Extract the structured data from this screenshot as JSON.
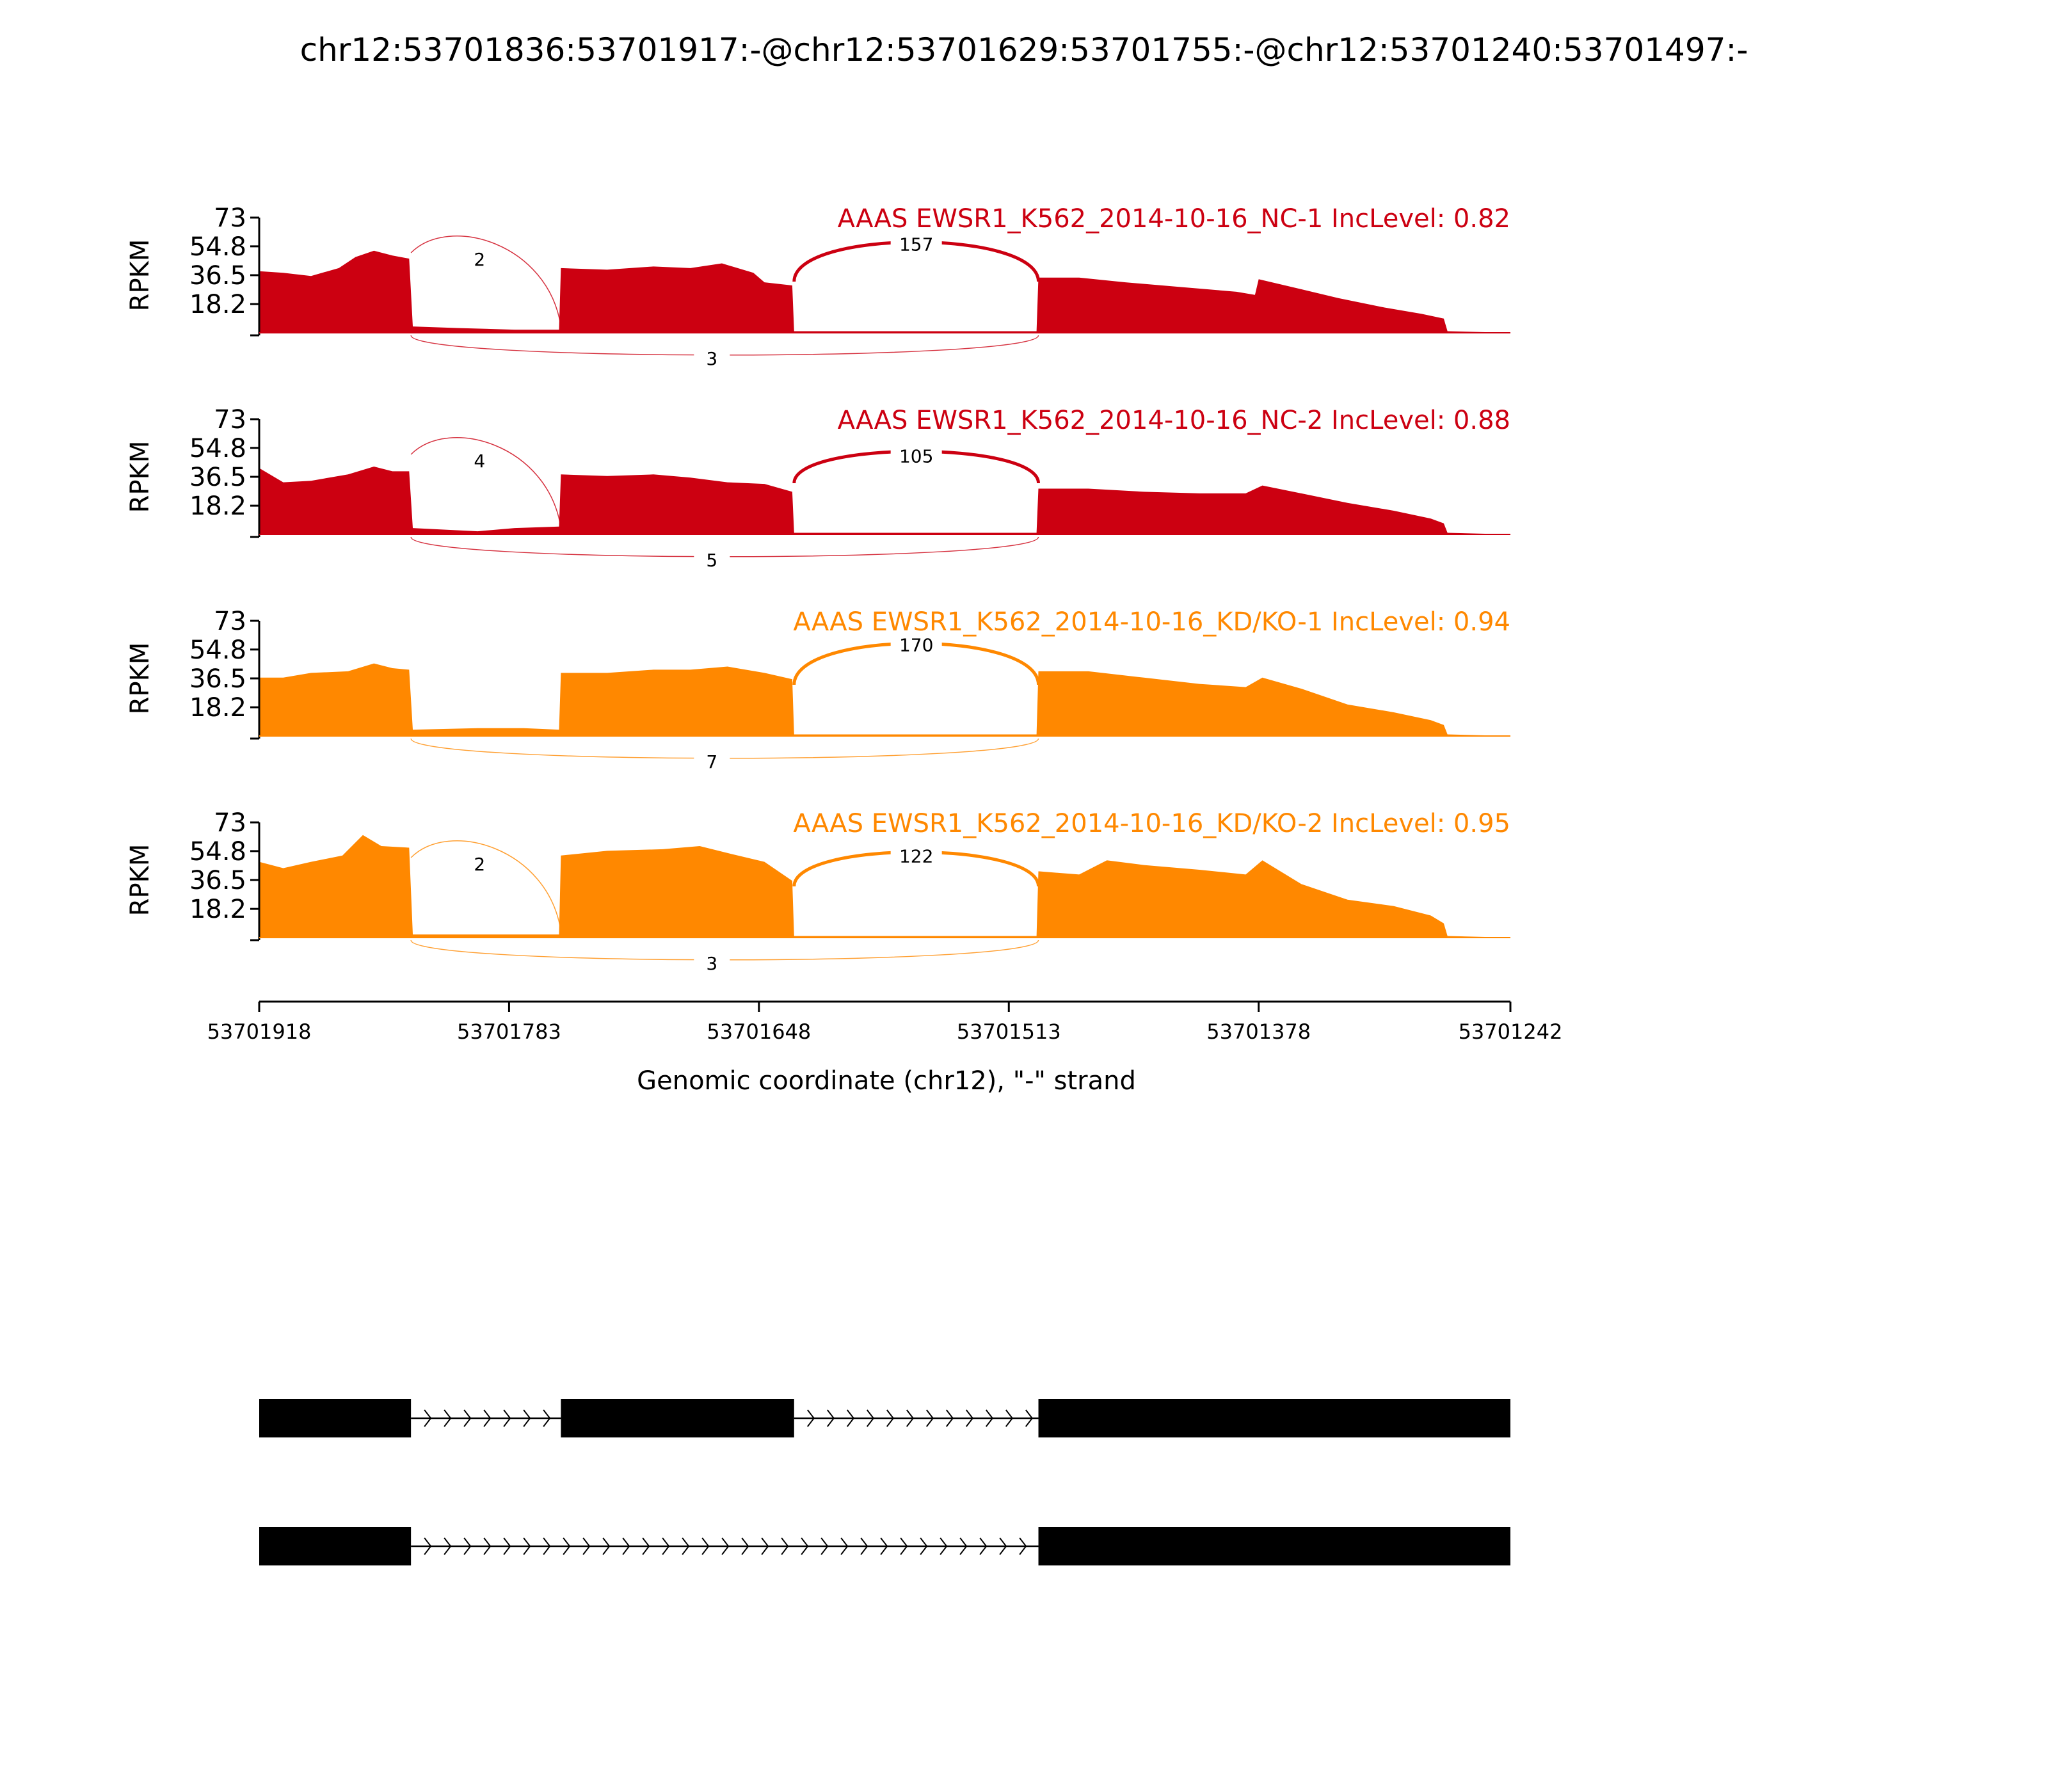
{
  "chart_data": {
    "type": "area",
    "title": "chr12:53701836:53701917:-@chr12:53701629:53701755:-@chr12:53701240:53701497:-",
    "xlabel": "Genomic coordinate (chr12), \"-\" strand",
    "ylabel": "RPKM",
    "xlim": [
      53701918,
      53701242
    ],
    "ylim": [
      0,
      73
    ],
    "x_ticks": [
      "53701918",
      "53701783",
      "53701648",
      "53701513",
      "53701378",
      "53701242"
    ],
    "y_ticks": [
      "73",
      "54.8",
      "36.5",
      "18.2"
    ],
    "regions": [
      {
        "name": "exon1",
        "start": 53701918,
        "end": 53701836
      },
      {
        "name": "intron1",
        "start": 53701836,
        "end": 53701755
      },
      {
        "name": "exon2",
        "start": 53701755,
        "end": 53701629
      },
      {
        "name": "intron2",
        "start": 53701629,
        "end": 53701497
      },
      {
        "name": "exon3",
        "start": 53701497,
        "end": 53701242
      }
    ],
    "tracks": [
      {
        "label": "AAAS EWSR1_K562_2014-10-16_NC-1 IncLevel: 0.82",
        "color": "#cc0011",
        "junction_counts": {
          "exon1_exon2": "2",
          "exon2_exon3": "157",
          "exon1_exon3": "3"
        },
        "coverage": [
          {
            "x": 53701918,
            "y": 39
          },
          {
            "x": 53701905,
            "y": 38
          },
          {
            "x": 53701890,
            "y": 36
          },
          {
            "x": 53701875,
            "y": 41
          },
          {
            "x": 53701866,
            "y": 48
          },
          {
            "x": 53701856,
            "y": 52
          },
          {
            "x": 53701846,
            "y": 49
          },
          {
            "x": 53701837,
            "y": 47
          },
          {
            "x": 53701835,
            "y": 4
          },
          {
            "x": 53701810,
            "y": 3
          },
          {
            "x": 53701780,
            "y": 2
          },
          {
            "x": 53701756,
            "y": 2
          },
          {
            "x": 53701755,
            "y": 41
          },
          {
            "x": 53701730,
            "y": 40
          },
          {
            "x": 53701705,
            "y": 42
          },
          {
            "x": 53701685,
            "y": 41
          },
          {
            "x": 53701668,
            "y": 44
          },
          {
            "x": 53701651,
            "y": 38
          },
          {
            "x": 53701645,
            "y": 32
          },
          {
            "x": 53701630,
            "y": 30
          },
          {
            "x": 53701629,
            "y": 1
          },
          {
            "x": 53701560,
            "y": 1
          },
          {
            "x": 53701498,
            "y": 1
          },
          {
            "x": 53701497,
            "y": 35
          },
          {
            "x": 53701475,
            "y": 35
          },
          {
            "x": 53701450,
            "y": 32
          },
          {
            "x": 53701420,
            "y": 29
          },
          {
            "x": 53701390,
            "y": 26
          },
          {
            "x": 53701380,
            "y": 24
          },
          {
            "x": 53701378,
            "y": 34
          },
          {
            "x": 53701360,
            "y": 29
          },
          {
            "x": 53701335,
            "y": 22
          },
          {
            "x": 53701310,
            "y": 16
          },
          {
            "x": 53701290,
            "y": 12
          },
          {
            "x": 53701278,
            "y": 9
          },
          {
            "x": 53701276,
            "y": 1
          },
          {
            "x": 53701242,
            "y": 0
          }
        ]
      },
      {
        "label": "AAAS EWSR1_K562_2014-10-16_NC-2 IncLevel: 0.88",
        "color": "#cc0011",
        "junction_counts": {
          "exon1_exon2": "4",
          "exon2_exon3": "105",
          "exon1_exon3": "5"
        },
        "coverage": [
          {
            "x": 53701918,
            "y": 42
          },
          {
            "x": 53701905,
            "y": 33
          },
          {
            "x": 53701890,
            "y": 34
          },
          {
            "x": 53701870,
            "y": 38
          },
          {
            "x": 53701856,
            "y": 43
          },
          {
            "x": 53701846,
            "y": 40
          },
          {
            "x": 53701837,
            "y": 40
          },
          {
            "x": 53701835,
            "y": 4
          },
          {
            "x": 53701800,
            "y": 2
          },
          {
            "x": 53701780,
            "y": 4
          },
          {
            "x": 53701756,
            "y": 5
          },
          {
            "x": 53701755,
            "y": 38
          },
          {
            "x": 53701730,
            "y": 37
          },
          {
            "x": 53701705,
            "y": 38
          },
          {
            "x": 53701685,
            "y": 36
          },
          {
            "x": 53701665,
            "y": 33
          },
          {
            "x": 53701645,
            "y": 32
          },
          {
            "x": 53701630,
            "y": 27
          },
          {
            "x": 53701629,
            "y": 1
          },
          {
            "x": 53701560,
            "y": 1
          },
          {
            "x": 53701498,
            "y": 1
          },
          {
            "x": 53701497,
            "y": 29
          },
          {
            "x": 53701470,
            "y": 29
          },
          {
            "x": 53701440,
            "y": 27
          },
          {
            "x": 53701410,
            "y": 26
          },
          {
            "x": 53701385,
            "y": 26
          },
          {
            "x": 53701376,
            "y": 31
          },
          {
            "x": 53701355,
            "y": 26
          },
          {
            "x": 53701330,
            "y": 20
          },
          {
            "x": 53701305,
            "y": 15
          },
          {
            "x": 53701285,
            "y": 10
          },
          {
            "x": 53701278,
            "y": 7
          },
          {
            "x": 53701276,
            "y": 1
          },
          {
            "x": 53701242,
            "y": 0
          }
        ]
      },
      {
        "label": "AAAS EWSR1_K562_2014-10-16_KD/KO-1 IncLevel: 0.94",
        "color": "#ff8800",
        "junction_counts": {
          "exon1_exon2": "",
          "exon2_exon3": "170",
          "exon1_exon3": "7"
        },
        "coverage": [
          {
            "x": 53701918,
            "y": 37
          },
          {
            "x": 53701905,
            "y": 37
          },
          {
            "x": 53701890,
            "y": 40
          },
          {
            "x": 53701870,
            "y": 41
          },
          {
            "x": 53701856,
            "y": 46
          },
          {
            "x": 53701846,
            "y": 43
          },
          {
            "x": 53701837,
            "y": 42
          },
          {
            "x": 53701835,
            "y": 4
          },
          {
            "x": 53701800,
            "y": 5
          },
          {
            "x": 53701775,
            "y": 5
          },
          {
            "x": 53701756,
            "y": 4
          },
          {
            "x": 53701755,
            "y": 40
          },
          {
            "x": 53701730,
            "y": 40
          },
          {
            "x": 53701705,
            "y": 42
          },
          {
            "x": 53701685,
            "y": 42
          },
          {
            "x": 53701665,
            "y": 44
          },
          {
            "x": 53701645,
            "y": 40
          },
          {
            "x": 53701630,
            "y": 36
          },
          {
            "x": 53701629,
            "y": 1
          },
          {
            "x": 53701560,
            "y": 1
          },
          {
            "x": 53701498,
            "y": 1
          },
          {
            "x": 53701497,
            "y": 41
          },
          {
            "x": 53701470,
            "y": 41
          },
          {
            "x": 53701440,
            "y": 37
          },
          {
            "x": 53701410,
            "y": 33
          },
          {
            "x": 53701385,
            "y": 31
          },
          {
            "x": 53701376,
            "y": 37
          },
          {
            "x": 53701355,
            "y": 30
          },
          {
            "x": 53701330,
            "y": 20
          },
          {
            "x": 53701305,
            "y": 15
          },
          {
            "x": 53701285,
            "y": 10
          },
          {
            "x": 53701278,
            "y": 7
          },
          {
            "x": 53701276,
            "y": 1
          },
          {
            "x": 53701242,
            "y": 0
          }
        ]
      },
      {
        "label": "AAAS EWSR1_K562_2014-10-16_KD/KO-2 IncLevel: 0.95",
        "color": "#ff8800",
        "junction_counts": {
          "exon1_exon2": "2",
          "exon2_exon3": "122",
          "exon1_exon3": "3"
        },
        "coverage": [
          {
            "x": 53701918,
            "y": 48
          },
          {
            "x": 53701905,
            "y": 44
          },
          {
            "x": 53701890,
            "y": 48
          },
          {
            "x": 53701873,
            "y": 52
          },
          {
            "x": 53701862,
            "y": 65
          },
          {
            "x": 53701852,
            "y": 58
          },
          {
            "x": 53701837,
            "y": 57
          },
          {
            "x": 53701835,
            "y": 2
          },
          {
            "x": 53701800,
            "y": 2
          },
          {
            "x": 53701775,
            "y": 2
          },
          {
            "x": 53701756,
            "y": 2
          },
          {
            "x": 53701755,
            "y": 52
          },
          {
            "x": 53701730,
            "y": 55
          },
          {
            "x": 53701700,
            "y": 56
          },
          {
            "x": 53701680,
            "y": 58
          },
          {
            "x": 53701663,
            "y": 53
          },
          {
            "x": 53701645,
            "y": 48
          },
          {
            "x": 53701630,
            "y": 36
          },
          {
            "x": 53701629,
            "y": 1
          },
          {
            "x": 53701560,
            "y": 1
          },
          {
            "x": 53701498,
            "y": 1
          },
          {
            "x": 53701497,
            "y": 42
          },
          {
            "x": 53701475,
            "y": 40
          },
          {
            "x": 53701460,
            "y": 49
          },
          {
            "x": 53701440,
            "y": 46
          },
          {
            "x": 53701410,
            "y": 43
          },
          {
            "x": 53701385,
            "y": 40
          },
          {
            "x": 53701376,
            "y": 49
          },
          {
            "x": 53701355,
            "y": 34
          },
          {
            "x": 53701330,
            "y": 24
          },
          {
            "x": 53701305,
            "y": 20
          },
          {
            "x": 53701285,
            "y": 14
          },
          {
            "x": 53701278,
            "y": 9
          },
          {
            "x": 53701276,
            "y": 1
          },
          {
            "x": 53701242,
            "y": 0
          }
        ]
      }
    ],
    "isoforms": [
      {
        "name": "inclusion",
        "exons": [
          [
            53701918,
            53701836
          ],
          [
            53701755,
            53701629
          ],
          [
            53701497,
            53701242
          ]
        ]
      },
      {
        "name": "exclusion",
        "exons": [
          [
            53701918,
            53701836
          ],
          [
            53701497,
            53701242
          ]
        ]
      }
    ],
    "grid": false,
    "legend": "none"
  }
}
